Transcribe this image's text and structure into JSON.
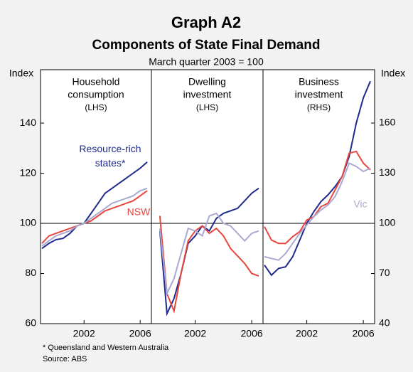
{
  "title": "Graph A2",
  "subtitle": "Components of State Final Demand",
  "base_note": "March quarter 2003 = 100",
  "left_axis_label": "Index",
  "right_axis_label": "Index",
  "footnote": "*  Queensland and Western Australia",
  "source": "Source: ABS",
  "chart_data": [
    {
      "type": "line",
      "title_lines": [
        "Household",
        "consumption",
        "(LHS)"
      ],
      "yaxis": "left",
      "x": [
        1999.0,
        1999.5,
        2000.0,
        2000.5,
        2001.0,
        2001.5,
        2002.0,
        2002.5,
        2003.0,
        2003.5,
        2004.0,
        2004.5,
        2005.0,
        2005.5,
        2006.0,
        2006.5
      ],
      "xlim": [
        1998.9,
        2006.8
      ],
      "xticks": [
        2002,
        2006
      ],
      "ylim": [
        60,
        161.3
      ],
      "yticks": [
        60,
        80,
        100,
        120,
        140
      ],
      "hline": 100,
      "series": [
        {
          "name": "Resource-rich states*",
          "color": "#1f2a8c",
          "values": [
            90,
            92,
            93.5,
            94,
            96,
            99,
            100,
            104,
            108,
            112,
            114,
            116,
            118,
            120,
            122,
            124.5
          ]
        },
        {
          "name": "NSW",
          "color": "#e8473d",
          "values": [
            92,
            95,
            96,
            97,
            98,
            99,
            100,
            101,
            103,
            105,
            106,
            107,
            108,
            109,
            111,
            113
          ]
        },
        {
          "color": "#a9a9d2",
          "values": [
            91,
            93,
            95,
            96,
            97,
            99,
            100,
            102,
            104,
            106,
            108,
            109,
            110,
            111,
            113,
            114
          ]
        }
      ]
    },
    {
      "type": "line",
      "title_lines": [
        "Dwelling",
        "investment",
        "(LHS)"
      ],
      "yaxis": "none",
      "x": [
        1999.0,
        1999.5,
        2000.0,
        2000.5,
        2001.0,
        2001.5,
        2002.0,
        2002.5,
        2003.0,
        2003.5,
        2004.0,
        2004.5,
        2005.0,
        2005.5,
        2006.0,
        2006.5
      ],
      "xlim": [
        1998.9,
        2006.8
      ],
      "xticks": [
        2002,
        2006
      ],
      "ylim": [
        60,
        161.3
      ],
      "hline": 100,
      "series": [
        {
          "color": "#1f2a8c",
          "values": [
            null,
            97,
            64,
            70,
            80,
            92,
            95,
            99,
            97,
            102,
            104,
            105,
            106,
            109,
            112,
            114
          ]
        },
        {
          "color": "#e8473d",
          "values": [
            null,
            103,
            72,
            65,
            80,
            93,
            97,
            99,
            96,
            98,
            95,
            90,
            87,
            84,
            80,
            79
          ]
        },
        {
          "color": "#a9a9d2",
          "values": [
            null,
            98,
            72,
            78,
            88,
            98,
            97,
            95,
            103,
            104,
            100,
            99,
            96,
            93,
            96,
            97
          ]
        }
      ]
    },
    {
      "type": "line",
      "title_lines": [
        "Business",
        "investment",
        "(RHS)"
      ],
      "yaxis": "right",
      "x": [
        1999.0,
        1999.5,
        2000.0,
        2000.5,
        2001.0,
        2001.5,
        2002.0,
        2002.5,
        2003.0,
        2003.5,
        2004.0,
        2004.5,
        2005.0,
        2005.5,
        2006.0,
        2006.5
      ],
      "xlim": [
        1998.9,
        2006.8
      ],
      "xticks": [
        2002,
        2006
      ],
      "ylim": [
        40,
        191.9
      ],
      "yticks": [
        40,
        70,
        100,
        130,
        160
      ],
      "hline": 100,
      "series": [
        {
          "color": "#1f2a8c",
          "values": [
            75,
            69,
            73,
            74,
            80,
            90,
            100,
            107,
            113,
            117,
            122,
            128,
            140,
            160,
            175,
            185
          ]
        },
        {
          "color": "#e8473d",
          "values": [
            98,
            90,
            88,
            88,
            92,
            95,
            102,
            104,
            110,
            112,
            120,
            128,
            142,
            143,
            136,
            132
          ]
        },
        {
          "name": "Vic",
          "color": "#a9a9d2",
          "values": [
            80,
            79,
            78,
            82,
            88,
            94,
            99,
            104,
            108,
            111,
            116,
            125,
            136,
            134,
            131,
            133
          ]
        }
      ]
    }
  ]
}
